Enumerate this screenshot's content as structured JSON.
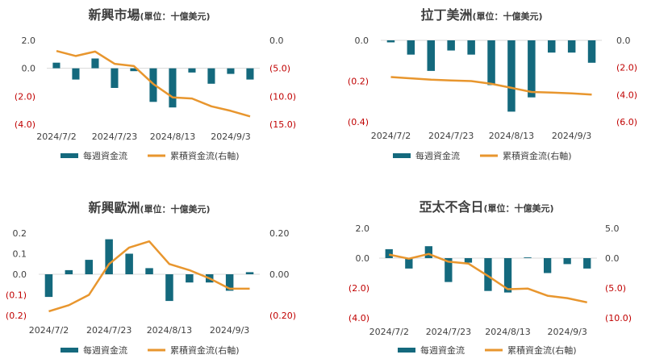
{
  "colors": {
    "bar": "#14697d",
    "line": "#e8962e",
    "neg": "#c00000",
    "text": "#404040"
  },
  "legend": {
    "bar_label": "每週資金流",
    "line_label": "累積資金流(右軸)"
  },
  "chart_data": [
    {
      "type": "bar+line",
      "title": "新興市場",
      "subtitle": "(單位：十億美元)",
      "x_ticks": [
        "2024/7/2",
        "2024/7/23",
        "2024/8/13",
        "2024/9/3"
      ],
      "x_tick_index": [
        0,
        3,
        6,
        9
      ],
      "left_axis": {
        "min": -4,
        "max": 2,
        "ticks": [
          2,
          0,
          -2,
          -4
        ],
        "labels": [
          "2.0",
          "0.0",
          "(2.0)",
          "(4.0)"
        ]
      },
      "right_axis": {
        "min": -15,
        "max": 0,
        "ticks": [
          0,
          -5,
          -10,
          -15
        ],
        "labels": [
          "0.0",
          "(5.0)",
          "(10.0)",
          "(15.0)"
        ]
      },
      "series": [
        {
          "name": "每週資金流",
          "axis": "left",
          "values": [
            0.4,
            -0.8,
            0.7,
            -1.4,
            -0.2,
            -2.4,
            -2.8,
            -0.3,
            -1.1,
            -0.4,
            -0.8
          ]
        },
        {
          "name": "累積資金流(右軸)",
          "axis": "right",
          "values": [
            -1.9,
            -2.8,
            -2.0,
            -4.2,
            -4.6,
            -7.8,
            -10.2,
            -10.4,
            -11.8,
            -12.6,
            -13.6
          ]
        }
      ]
    },
    {
      "type": "bar+line",
      "title": "拉丁美洲",
      "subtitle": "(單位：十億美元)",
      "x_ticks": [
        "2024/7/2",
        "2024/7/23",
        "2024/8/13",
        "2024/9/3"
      ],
      "x_tick_index": [
        0,
        3,
        6,
        9
      ],
      "left_axis": {
        "min": -0.4,
        "max": 0,
        "ticks": [
          0,
          -0.2,
          -0.4
        ],
        "labels": [
          "0.0",
          "(0.2)",
          "(0.4)"
        ]
      },
      "right_axis": {
        "min": -6,
        "max": 0,
        "ticks": [
          0,
          -2,
          -4,
          -6
        ],
        "labels": [
          "0.0",
          "(2.0)",
          "(4.0)",
          "(6.0)"
        ]
      },
      "series": [
        {
          "name": "每週資金流",
          "axis": "left",
          "values": [
            -0.01,
            -0.07,
            -0.15,
            -0.05,
            -0.07,
            -0.22,
            -0.35,
            -0.28,
            -0.06,
            -0.06,
            -0.11
          ]
        },
        {
          "name": "累積資金流(右軸)",
          "axis": "right",
          "values": [
            -2.7,
            -2.8,
            -2.9,
            -2.95,
            -3.0,
            -3.2,
            -3.5,
            -3.8,
            -3.85,
            -3.9,
            -4.0
          ]
        }
      ]
    },
    {
      "type": "bar+line",
      "title": "新興歐洲",
      "subtitle": "(單位：十億美元)",
      "x_ticks": [
        "2024/7/2",
        "2024/7/23",
        "2024/8/13",
        "2024/9/3"
      ],
      "x_tick_index": [
        0,
        3,
        6,
        9
      ],
      "left_axis": {
        "min": -0.2,
        "max": 0.2,
        "ticks": [
          0.2,
          0.1,
          0.0,
          -0.1,
          -0.2
        ],
        "labels": [
          "0.2",
          "0.1",
          "0.0",
          "(0.1)",
          "(0.2)"
        ]
      },
      "right_axis": {
        "min": -0.2,
        "max": 0.2,
        "ticks": [
          0.2,
          0.0,
          -0.2
        ],
        "labels": [
          "0.20",
          "0.00",
          "(0.20)"
        ]
      },
      "series": [
        {
          "name": "每週資金流",
          "axis": "left",
          "values": [
            -0.11,
            0.02,
            0.07,
            0.17,
            0.1,
            0.03,
            -0.13,
            -0.04,
            -0.04,
            -0.08,
            0.01
          ]
        },
        {
          "name": "累積資金流(右軸)",
          "axis": "right",
          "values": [
            -0.18,
            -0.15,
            -0.1,
            0.05,
            0.13,
            0.16,
            0.05,
            0.02,
            -0.02,
            -0.07,
            -0.07
          ]
        }
      ]
    },
    {
      "type": "bar+line",
      "title": "亞太不含日",
      "subtitle": "(單位：十億美元)",
      "x_ticks": [
        "2024/7/2",
        "2024/7/23",
        "2024/8/13",
        "2024/9/3"
      ],
      "x_tick_index": [
        0,
        3,
        6,
        9
      ],
      "left_axis": {
        "min": -4,
        "max": 2,
        "ticks": [
          2,
          0,
          -2,
          -4
        ],
        "labels": [
          "2.0",
          "0.0",
          "(2.0)",
          "(4.0)"
        ]
      },
      "right_axis": {
        "min": -10,
        "max": 5,
        "ticks": [
          5,
          0,
          -5,
          -10
        ],
        "labels": [
          "5.0",
          "0.0",
          "(5.0)",
          "(10.0)"
        ]
      },
      "series": [
        {
          "name": "每週資金流",
          "axis": "left",
          "values": [
            0.6,
            -0.7,
            0.8,
            -1.6,
            -0.3,
            -2.2,
            -2.3,
            0.05,
            -1.0,
            -0.4,
            -0.7
          ]
        },
        {
          "name": "累積資金流(右軸)",
          "axis": "right",
          "values": [
            0.6,
            -0.1,
            0.7,
            -0.6,
            -0.9,
            -3.0,
            -5.2,
            -5.1,
            -6.3,
            -6.7,
            -7.4
          ]
        }
      ]
    }
  ]
}
